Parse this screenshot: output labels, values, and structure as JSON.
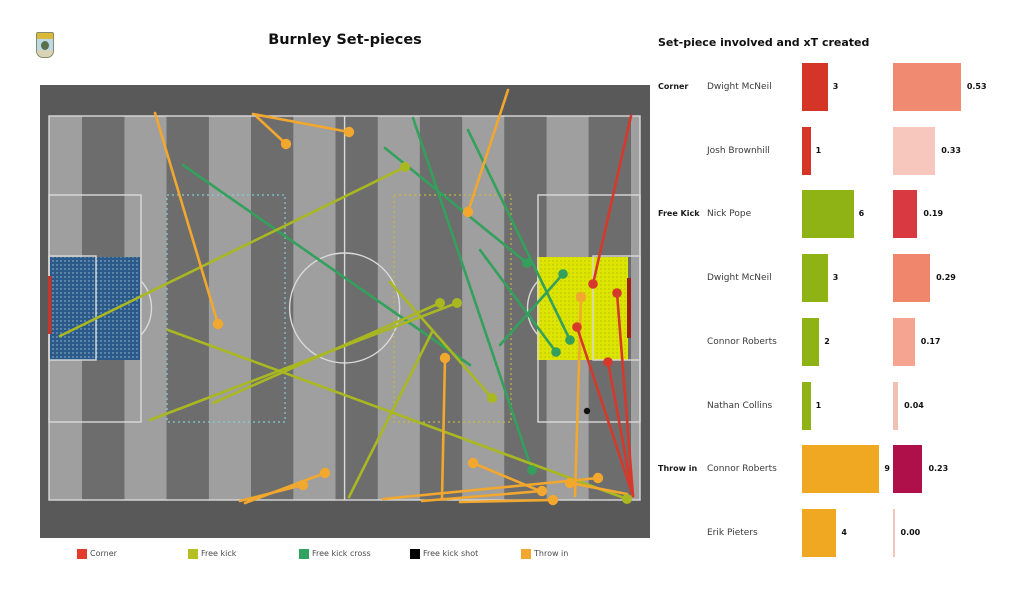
{
  "header": {
    "title": "Burnley Set-pieces",
    "crest_icon": "burnley-club-crest"
  },
  "panel": {
    "title": "Set-piece involved and xT created",
    "rows": [
      {
        "category": "Corner",
        "player": "Dwight McNeil",
        "count": 3,
        "count_label": "3",
        "count_color": "#d43527",
        "xt_value": 0.53,
        "xt_label": "0.53",
        "xt_color": "#f08a70"
      },
      {
        "category": "",
        "player": "Josh Brownhill",
        "count": 1,
        "count_label": "1",
        "count_color": "#d43527",
        "xt_value": 0.33,
        "xt_label": "0.33",
        "xt_color": "#f7c6bc"
      },
      {
        "category": "Free Kick",
        "player": "Nick Pope",
        "count": 6,
        "count_label": "6",
        "count_color": "#8fb314",
        "xt_value": 0.19,
        "xt_label": "0.19",
        "xt_color": "#d93a42"
      },
      {
        "category": "",
        "player": "Dwight McNeil",
        "count": 3,
        "count_label": "3",
        "count_color": "#8fb314",
        "xt_value": 0.29,
        "xt_label": "0.29",
        "xt_color": "#f0876c"
      },
      {
        "category": "",
        "player": "Connor Roberts",
        "count": 2,
        "count_label": "2",
        "count_color": "#8fb314",
        "xt_value": 0.17,
        "xt_label": "0.17",
        "xt_color": "#f5a491"
      },
      {
        "category": "",
        "player": "Nathan Collins",
        "count": 1,
        "count_label": "1",
        "count_color": "#8fb314",
        "xt_value": 0.04,
        "xt_label": "0.04",
        "xt_color": "#f2bfb4"
      },
      {
        "category": "Throw in",
        "player": "Connor Roberts",
        "count": 9,
        "count_label": "9",
        "count_color": "#f0a822",
        "xt_value": 0.23,
        "xt_label": "0.23",
        "xt_color": "#b0104a"
      },
      {
        "category": "",
        "player": "Erik Pieters",
        "count": 4,
        "count_label": "4",
        "count_color": "#f0a822",
        "xt_value": 0.0,
        "xt_label": "0.00",
        "xt_color": "#f0c6ba"
      }
    ]
  },
  "legend": {
    "items": [
      {
        "label": "Corner",
        "color": "#e23a2b",
        "x": 77
      },
      {
        "label": "Free kick",
        "color": "#b5bf22",
        "x": 188
      },
      {
        "label": "Free kick cross",
        "color": "#2fa35f",
        "x": 299
      },
      {
        "label": "Free kick shot",
        "color": "#000000",
        "x": 410
      },
      {
        "label": "Throw in",
        "color": "#f2a72e",
        "x": 521
      }
    ]
  },
  "pitch": {
    "frame_color": "#595959",
    "stripe_light": "#9f9f9f",
    "stripe_dark": "#6d6d6d",
    "line_color": "#d9d9d9",
    "zone_blue_fill": "#2b5a88",
    "zone_blue_dot": "#a8c4de",
    "zone_yellow_fill": "#dce400",
    "zone_yellow_dot": "#b2c000",
    "dash_teal": "#85cdd3",
    "dash_yellow": "#c6b93e",
    "goal_mark_left_color": "#c63327",
    "goal_mark_right_color": "#9c1f14",
    "colors": {
      "corner": "#d6392b",
      "free_kick": "#a9b821",
      "free_kick_cross": "#33a05c",
      "throw_in": "#f2a72e",
      "shot": "#111111"
    },
    "zones": {
      "blue": [
        50,
        257,
        90,
        103
      ],
      "yellow": [
        537,
        257,
        91,
        103
      ],
      "dashed_left": [
        167,
        195,
        118,
        227
      ],
      "dashed_right": [
        394,
        195,
        117,
        227
      ]
    },
    "goal_marks": [
      [
        48,
        276,
        3.5,
        58
      ],
      [
        627,
        278,
        4,
        60
      ]
    ],
    "lines": {
      "corner": [
        [
          631,
          116,
          593,
          284
        ],
        [
          633,
          496,
          577,
          327
        ],
        [
          633,
          496,
          608,
          362
        ],
        [
          633,
          496,
          617,
          293
        ]
      ],
      "free_kick": [
        [
          60,
          336,
          405,
          167
        ],
        [
          213,
          403,
          440,
          303
        ],
        [
          150,
          420,
          457,
          303
        ],
        [
          390,
          282,
          492,
          398
        ],
        [
          168,
          330,
          627,
          499
        ],
        [
          349,
          497,
          432,
          332
        ]
      ],
      "free_kick_cross": [
        [
          413,
          118,
          532,
          470
        ],
        [
          468,
          130,
          570,
          340
        ],
        [
          500,
          345,
          563,
          274
        ],
        [
          480,
          250,
          556,
          352
        ],
        [
          385,
          148,
          527,
          263
        ],
        [
          183,
          165,
          470,
          365
        ]
      ],
      "throw_in": [
        [
          155,
          113,
          218,
          324
        ],
        [
          257,
          117,
          286,
          144
        ],
        [
          253,
          114,
          349,
          132
        ],
        [
          508,
          90,
          468,
          212
        ],
        [
          442,
          499,
          445,
          358
        ],
        [
          240,
          501,
          303,
          485
        ],
        [
          245,
          503,
          325,
          473
        ],
        [
          383,
          499,
          598,
          478
        ],
        [
          422,
          501,
          542,
          491
        ],
        [
          460,
          502,
          553,
          500
        ],
        [
          627,
          494,
          570,
          483
        ],
        [
          540,
          491,
          473,
          463
        ],
        [
          575,
          496,
          581,
          297
        ]
      ],
      "shot": [
        [
          587,
          411
        ]
      ]
    },
    "no_dot": {
      "free_kick": [
        5
      ],
      "free_kick_cross": [
        5
      ]
    }
  },
  "chart_data": [
    {
      "type": "bar",
      "title": "Set-piece involved and xT created",
      "categories": [
        "Dwight McNeil",
        "Josh Brownhill",
        "Nick Pope",
        "Dwight McNeil",
        "Connor Roberts",
        "Nathan Collins",
        "Connor Roberts",
        "Erik Pieters"
      ],
      "groups": [
        "Corner",
        "Corner",
        "Free Kick",
        "Free Kick",
        "Free Kick",
        "Free Kick",
        "Throw in",
        "Throw in"
      ],
      "series": [
        {
          "name": "Set-pieces involved",
          "values": [
            3,
            1,
            6,
            3,
            2,
            1,
            9,
            4
          ]
        },
        {
          "name": "xT created",
          "values": [
            0.53,
            0.33,
            0.19,
            0.29,
            0.17,
            0.04,
            0.23,
            0.0
          ]
        }
      ],
      "xlabel": "",
      "ylabel": "",
      "legend_position": "none",
      "grid": false
    },
    {
      "type": "scatter",
      "title": "Burnley Set-pieces pitch map",
      "legend_entries": [
        "Corner",
        "Free kick",
        "Free kick cross",
        "Free kick shot",
        "Throw in"
      ],
      "note": "Lines are set-piece deliveries on a striped pitch; see pitch.lines for endpoint coordinates in image pixels"
    }
  ]
}
